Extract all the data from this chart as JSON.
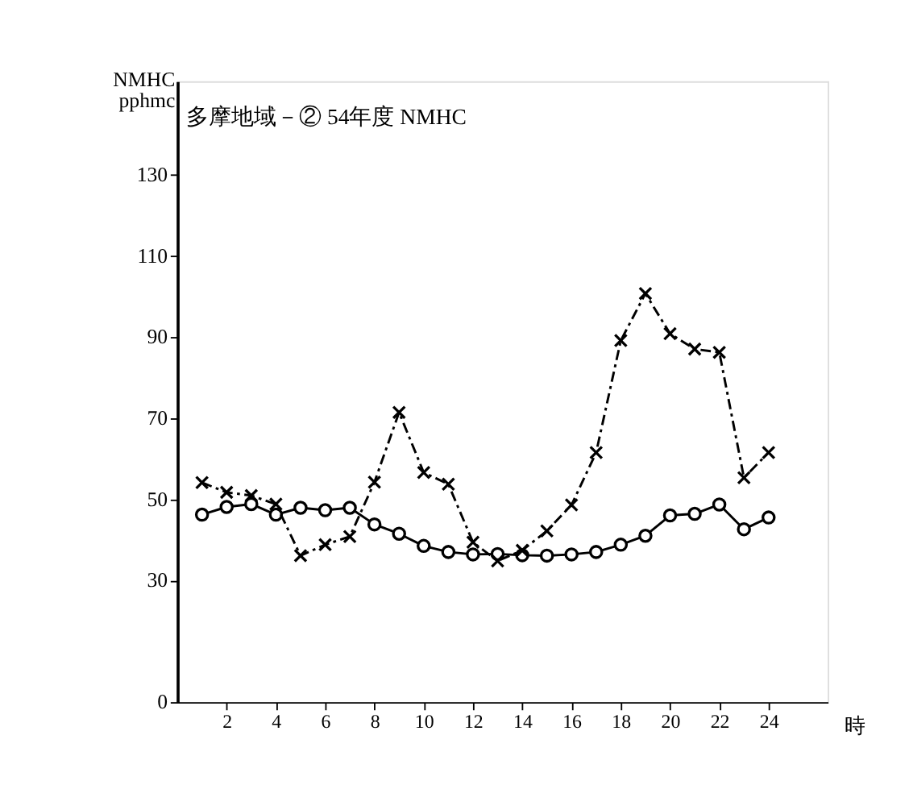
{
  "chart_data": {
    "type": "line",
    "title": "多摩地域－② 54年度 NMHC",
    "xlabel": "時",
    "ylabel": "NMHC\npphmc",
    "x": [
      1,
      2,
      3,
      4,
      5,
      6,
      7,
      8,
      9,
      10,
      11,
      12,
      13,
      14,
      15,
      16,
      17,
      18,
      19,
      20,
      21,
      22,
      23,
      24
    ],
    "series": [
      {
        "color": "#000000",
        "marker": "circle",
        "line_style": "solid",
        "values": [
          46.2,
          48.1,
          48.8,
          46.2,
          47.9,
          47.3,
          47.9,
          43.8,
          41.5,
          38.5,
          37.0,
          36.4,
          36.5,
          36.2,
          36.1,
          36.4,
          37.0,
          38.8,
          41.0,
          46.0,
          46.4,
          48.7,
          42.6,
          45.5
        ]
      },
      {
        "color": "#000000",
        "marker": "cross",
        "line_style": "dashed",
        "values": [
          54.1,
          51.7,
          50.9,
          48.8,
          36.1,
          38.8,
          40.8,
          54.2,
          71.4,
          56.6,
          53.7,
          39.4,
          34.8,
          37.4,
          42.2,
          48.6,
          61.5,
          89.1,
          100.7,
          90.8,
          87.0,
          86.2,
          55.3,
          61.5
        ]
      }
    ],
    "xlim": [
      0,
      26.4
    ],
    "xticks": [
      2,
      4,
      6,
      8,
      10,
      12,
      14,
      16,
      18,
      20,
      22,
      24
    ],
    "ylim": [
      0,
      153
    ],
    "yticks": [
      0,
      30,
      50,
      70,
      90,
      110,
      130
    ],
    "grid": false
  }
}
